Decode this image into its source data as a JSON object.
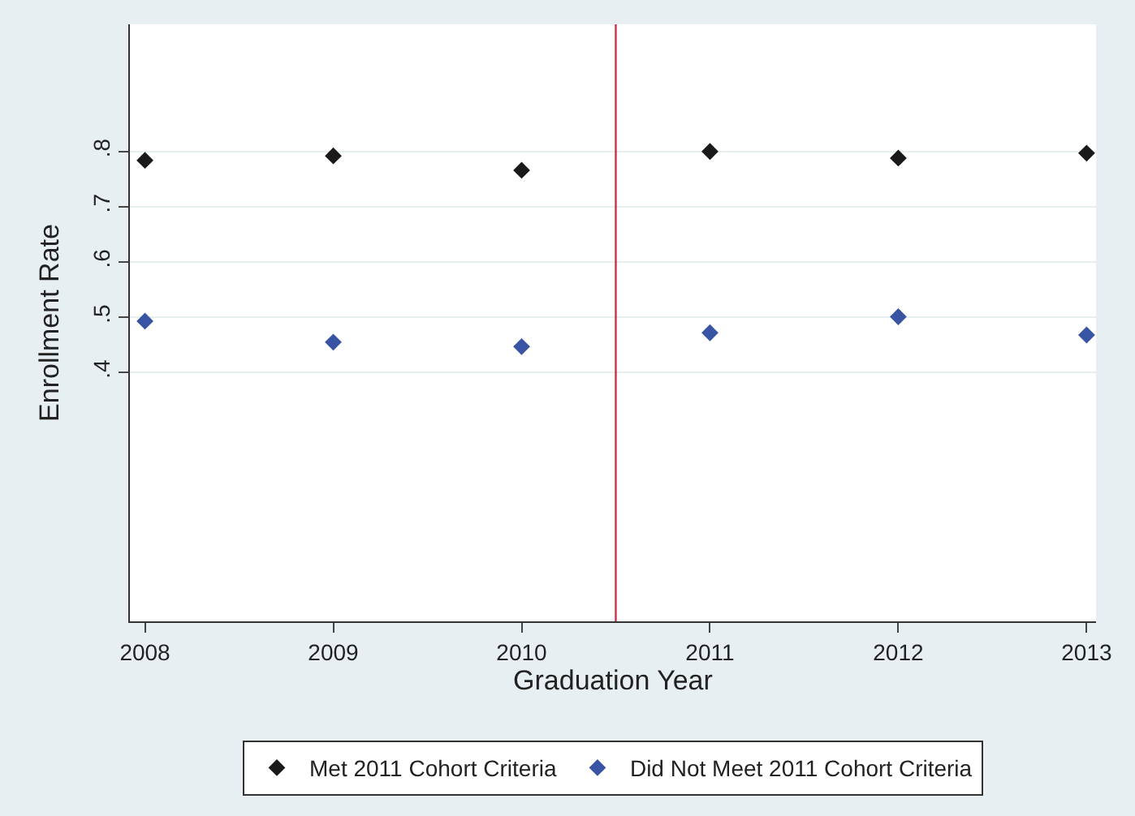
{
  "chart_data": {
    "type": "scatter",
    "xlabel": "Graduation Year",
    "ylabel": "Enrollment Rate",
    "x": [
      2008,
      2009,
      2010,
      2011,
      2012,
      2013
    ],
    "series": [
      {
        "name": "Met 2011 Cohort Criteria",
        "color": "#1a1a1a",
        "values": [
          0.784,
          0.792,
          0.766,
          0.8,
          0.788,
          0.797
        ]
      },
      {
        "name": "Did Not Meet 2011 Cohort Criteria",
        "color": "#3a54a4",
        "values": [
          0.493,
          0.455,
          0.447,
          0.472,
          0.501,
          0.468
        ]
      }
    ],
    "xlim": [
      2007.92,
      2013.05
    ],
    "xticks": [
      2008,
      2009,
      2010,
      2011,
      2012,
      2013
    ],
    "ylim": [
      -0.05,
      1.03
    ],
    "yticks": [
      {
        "value": 0.4,
        "label": ".4"
      },
      {
        "value": 0.5,
        "label": ".5"
      },
      {
        "value": 0.6,
        "label": ".6"
      },
      {
        "value": 0.7,
        "label": ".7"
      },
      {
        "value": 0.8,
        "label": ".8"
      }
    ],
    "ref_lines": [
      {
        "axis": "x",
        "value": 2010.5,
        "color": "#c8334a"
      }
    ],
    "grid": "y",
    "legend": "bottom",
    "marker": "diamond"
  }
}
